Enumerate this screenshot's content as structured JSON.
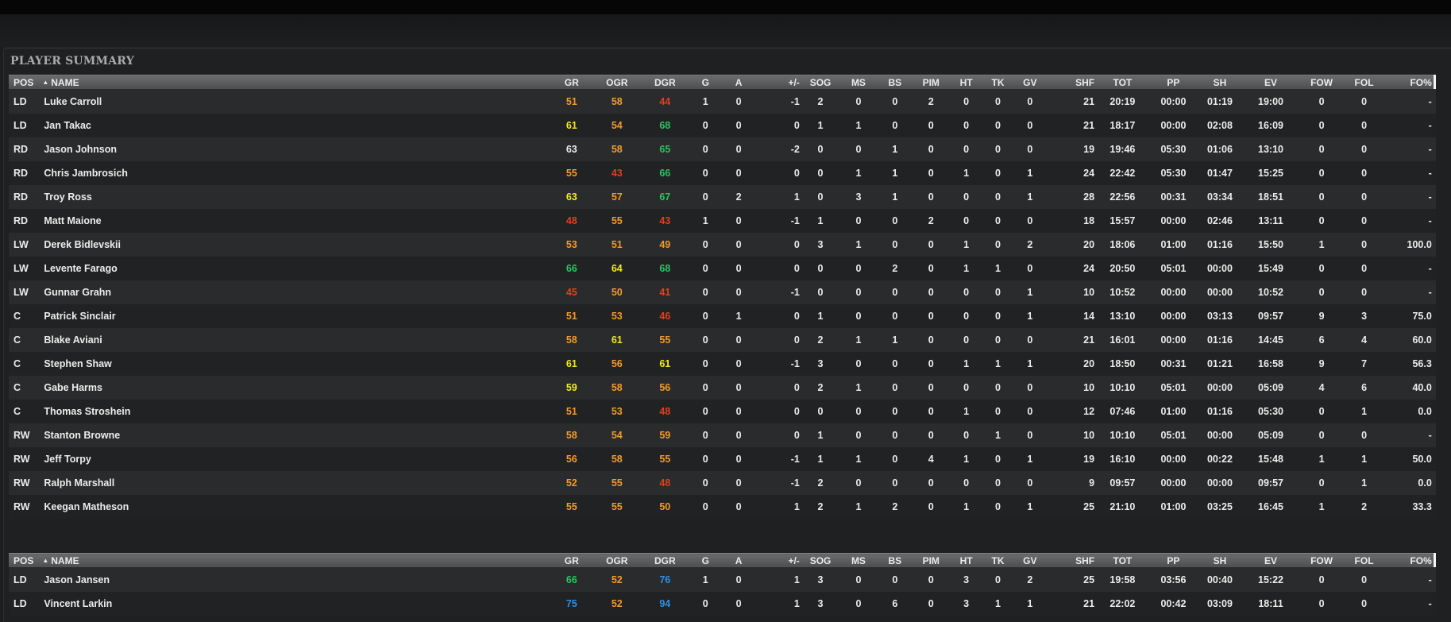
{
  "panel": {
    "title": "PLAYER SUMMARY"
  },
  "columns": [
    "POS",
    "NAME",
    "GR",
    "OGR",
    "DGR",
    "G",
    "A",
    "+/-",
    "SOG",
    "MS",
    "BS",
    "PIM",
    "HT",
    "TK",
    "GV",
    "SHF",
    "TOT",
    "PP",
    "SH",
    "EV",
    "FOW",
    "FOL",
    "FO%"
  ],
  "rating_colors": {
    "orange": "#f39a2b",
    "yellow": "#f2ea1c",
    "red": "#e0401c",
    "green": "#29c45f",
    "blue": "#2f8fe4"
  },
  "skaters": [
    {
      "pos": "LD",
      "name": "Luke Carroll",
      "gr": "51",
      "grc": "orange",
      "ogr": "58",
      "ogrc": "orange",
      "dgr": "44",
      "dgrc": "red",
      "g": "1",
      "a": "0",
      "pm": "-1",
      "sog": "2",
      "ms": "0",
      "bs": "0",
      "pim": "2",
      "ht": "0",
      "tk": "0",
      "gv": "0",
      "shf": "21",
      "tot": "20:19",
      "pp": "00:00",
      "sh": "01:19",
      "ev": "19:00",
      "fow": "0",
      "fol": "0",
      "fop": "-"
    },
    {
      "pos": "LD",
      "name": "Jan Takac",
      "gr": "61",
      "grc": "yellow",
      "ogr": "54",
      "ogrc": "orange",
      "dgr": "68",
      "dgrc": "green",
      "g": "0",
      "a": "0",
      "pm": "0",
      "sog": "1",
      "ms": "1",
      "bs": "0",
      "pim": "0",
      "ht": "0",
      "tk": "0",
      "gv": "0",
      "shf": "21",
      "tot": "18:17",
      "pp": "00:00",
      "sh": "02:08",
      "ev": "16:09",
      "fow": "0",
      "fol": "0",
      "fop": "-"
    },
    {
      "pos": "RD",
      "name": "Jason Johnson",
      "gr": "63",
      "grc": "white",
      "ogr": "58",
      "ogrc": "orange",
      "dgr": "65",
      "dgrc": "green",
      "g": "0",
      "a": "0",
      "pm": "-2",
      "sog": "0",
      "ms": "0",
      "bs": "1",
      "pim": "0",
      "ht": "0",
      "tk": "0",
      "gv": "0",
      "shf": "19",
      "tot": "19:46",
      "pp": "05:30",
      "sh": "01:06",
      "ev": "13:10",
      "fow": "0",
      "fol": "0",
      "fop": "-"
    },
    {
      "pos": "RD",
      "name": "Chris Jambrosich",
      "gr": "55",
      "grc": "orange",
      "ogr": "43",
      "ogrc": "red",
      "dgr": "66",
      "dgrc": "green",
      "g": "0",
      "a": "0",
      "pm": "0",
      "sog": "0",
      "ms": "1",
      "bs": "1",
      "pim": "0",
      "ht": "1",
      "tk": "0",
      "gv": "1",
      "shf": "24",
      "tot": "22:42",
      "pp": "05:30",
      "sh": "01:47",
      "ev": "15:25",
      "fow": "0",
      "fol": "0",
      "fop": "-"
    },
    {
      "pos": "RD",
      "name": "Troy Ross",
      "gr": "63",
      "grc": "yellow",
      "ogr": "57",
      "ogrc": "orange",
      "dgr": "67",
      "dgrc": "green",
      "g": "0",
      "a": "2",
      "pm": "1",
      "sog": "0",
      "ms": "3",
      "bs": "1",
      "pim": "0",
      "ht": "0",
      "tk": "0",
      "gv": "1",
      "shf": "28",
      "tot": "22:56",
      "pp": "00:31",
      "sh": "03:34",
      "ev": "18:51",
      "fow": "0",
      "fol": "0",
      "fop": "-"
    },
    {
      "pos": "RD",
      "name": "Matt Maione",
      "gr": "48",
      "grc": "red",
      "ogr": "55",
      "ogrc": "orange",
      "dgr": "43",
      "dgrc": "red",
      "g": "1",
      "a": "0",
      "pm": "-1",
      "sog": "1",
      "ms": "0",
      "bs": "0",
      "pim": "2",
      "ht": "0",
      "tk": "0",
      "gv": "0",
      "shf": "18",
      "tot": "15:57",
      "pp": "00:00",
      "sh": "02:46",
      "ev": "13:11",
      "fow": "0",
      "fol": "0",
      "fop": "-"
    },
    {
      "pos": "LW",
      "name": "Derek Bidlevskii",
      "gr": "53",
      "grc": "orange",
      "ogr": "51",
      "ogrc": "orange",
      "dgr": "49",
      "dgrc": "orange",
      "g": "0",
      "a": "0",
      "pm": "0",
      "sog": "3",
      "ms": "1",
      "bs": "0",
      "pim": "0",
      "ht": "1",
      "tk": "0",
      "gv": "2",
      "shf": "20",
      "tot": "18:06",
      "pp": "01:00",
      "sh": "01:16",
      "ev": "15:50",
      "fow": "1",
      "fol": "0",
      "fop": "100.0"
    },
    {
      "pos": "LW",
      "name": "Levente Farago",
      "gr": "66",
      "grc": "green",
      "ogr": "64",
      "ogrc": "yellow",
      "dgr": "68",
      "dgrc": "green",
      "g": "0",
      "a": "0",
      "pm": "0",
      "sog": "0",
      "ms": "0",
      "bs": "2",
      "pim": "0",
      "ht": "1",
      "tk": "1",
      "gv": "0",
      "shf": "24",
      "tot": "20:50",
      "pp": "05:01",
      "sh": "00:00",
      "ev": "15:49",
      "fow": "0",
      "fol": "0",
      "fop": "-"
    },
    {
      "pos": "LW",
      "name": "Gunnar Grahn",
      "gr": "45",
      "grc": "red",
      "ogr": "50",
      "ogrc": "orange",
      "dgr": "41",
      "dgrc": "red",
      "g": "0",
      "a": "0",
      "pm": "-1",
      "sog": "0",
      "ms": "0",
      "bs": "0",
      "pim": "0",
      "ht": "0",
      "tk": "0",
      "gv": "1",
      "shf": "10",
      "tot": "10:52",
      "pp": "00:00",
      "sh": "00:00",
      "ev": "10:52",
      "fow": "0",
      "fol": "0",
      "fop": "-"
    },
    {
      "pos": "C",
      "name": "Patrick Sinclair",
      "gr": "51",
      "grc": "orange",
      "ogr": "53",
      "ogrc": "orange",
      "dgr": "46",
      "dgrc": "red",
      "g": "0",
      "a": "1",
      "pm": "0",
      "sog": "1",
      "ms": "0",
      "bs": "0",
      "pim": "0",
      "ht": "0",
      "tk": "0",
      "gv": "1",
      "shf": "14",
      "tot": "13:10",
      "pp": "00:00",
      "sh": "03:13",
      "ev": "09:57",
      "fow": "9",
      "fol": "3",
      "fop": "75.0"
    },
    {
      "pos": "C",
      "name": "Blake Aviani",
      "gr": "58",
      "grc": "orange",
      "ogr": "61",
      "ogrc": "yellow",
      "dgr": "55",
      "dgrc": "orange",
      "g": "0",
      "a": "0",
      "pm": "0",
      "sog": "2",
      "ms": "1",
      "bs": "1",
      "pim": "0",
      "ht": "0",
      "tk": "0",
      "gv": "0",
      "shf": "21",
      "tot": "16:01",
      "pp": "00:00",
      "sh": "01:16",
      "ev": "14:45",
      "fow": "6",
      "fol": "4",
      "fop": "60.0"
    },
    {
      "pos": "C",
      "name": "Stephen Shaw",
      "gr": "61",
      "grc": "yellow",
      "ogr": "56",
      "ogrc": "orange",
      "dgr": "61",
      "dgrc": "yellow",
      "g": "0",
      "a": "0",
      "pm": "-1",
      "sog": "3",
      "ms": "0",
      "bs": "0",
      "pim": "0",
      "ht": "1",
      "tk": "1",
      "gv": "1",
      "shf": "20",
      "tot": "18:50",
      "pp": "00:31",
      "sh": "01:21",
      "ev": "16:58",
      "fow": "9",
      "fol": "7",
      "fop": "56.3"
    },
    {
      "pos": "C",
      "name": "Gabe Harms",
      "gr": "59",
      "grc": "yellow",
      "ogr": "58",
      "ogrc": "orange",
      "dgr": "56",
      "dgrc": "orange",
      "g": "0",
      "a": "0",
      "pm": "0",
      "sog": "2",
      "ms": "1",
      "bs": "0",
      "pim": "0",
      "ht": "0",
      "tk": "0",
      "gv": "0",
      "shf": "10",
      "tot": "10:10",
      "pp": "05:01",
      "sh": "00:00",
      "ev": "05:09",
      "fow": "4",
      "fol": "6",
      "fop": "40.0"
    },
    {
      "pos": "C",
      "name": "Thomas Stroshein",
      "gr": "51",
      "grc": "orange",
      "ogr": "53",
      "ogrc": "orange",
      "dgr": "48",
      "dgrc": "red",
      "g": "0",
      "a": "0",
      "pm": "0",
      "sog": "0",
      "ms": "0",
      "bs": "0",
      "pim": "0",
      "ht": "1",
      "tk": "0",
      "gv": "0",
      "shf": "12",
      "tot": "07:46",
      "pp": "01:00",
      "sh": "01:16",
      "ev": "05:30",
      "fow": "0",
      "fol": "1",
      "fop": "0.0"
    },
    {
      "pos": "RW",
      "name": "Stanton Browne",
      "gr": "58",
      "grc": "orange",
      "ogr": "54",
      "ogrc": "orange",
      "dgr": "59",
      "dgrc": "orange",
      "g": "0",
      "a": "0",
      "pm": "0",
      "sog": "1",
      "ms": "0",
      "bs": "0",
      "pim": "0",
      "ht": "0",
      "tk": "1",
      "gv": "0",
      "shf": "10",
      "tot": "10:10",
      "pp": "05:01",
      "sh": "00:00",
      "ev": "05:09",
      "fow": "0",
      "fol": "0",
      "fop": "-"
    },
    {
      "pos": "RW",
      "name": "Jeff Torpy",
      "gr": "56",
      "grc": "orange",
      "ogr": "58",
      "ogrc": "orange",
      "dgr": "55",
      "dgrc": "orange",
      "g": "0",
      "a": "0",
      "pm": "-1",
      "sog": "1",
      "ms": "1",
      "bs": "0",
      "pim": "4",
      "ht": "1",
      "tk": "0",
      "gv": "1",
      "shf": "19",
      "tot": "16:10",
      "pp": "00:00",
      "sh": "00:22",
      "ev": "15:48",
      "fow": "1",
      "fol": "1",
      "fop": "50.0"
    },
    {
      "pos": "RW",
      "name": "Ralph Marshall",
      "gr": "52",
      "grc": "orange",
      "ogr": "55",
      "ogrc": "orange",
      "dgr": "48",
      "dgrc": "red",
      "g": "0",
      "a": "0",
      "pm": "-1",
      "sog": "2",
      "ms": "0",
      "bs": "0",
      "pim": "0",
      "ht": "0",
      "tk": "0",
      "gv": "0",
      "shf": "9",
      "tot": "09:57",
      "pp": "00:00",
      "sh": "00:00",
      "ev": "09:57",
      "fow": "0",
      "fol": "1",
      "fop": "0.0"
    },
    {
      "pos": "RW",
      "name": "Keegan Matheson",
      "gr": "55",
      "grc": "orange",
      "ogr": "55",
      "ogrc": "orange",
      "dgr": "50",
      "dgrc": "orange",
      "g": "0",
      "a": "0",
      "pm": "1",
      "sog": "2",
      "ms": "1",
      "bs": "2",
      "pim": "0",
      "ht": "1",
      "tk": "0",
      "gv": "1",
      "shf": "25",
      "tot": "21:10",
      "pp": "01:00",
      "sh": "03:25",
      "ev": "16:45",
      "fow": "1",
      "fol": "2",
      "fop": "33.3"
    }
  ],
  "opponents": [
    {
      "pos": "LD",
      "name": "Jason Jansen",
      "gr": "66",
      "grc": "green",
      "ogr": "52",
      "ogrc": "orange",
      "dgr": "76",
      "dgrc": "blue",
      "g": "1",
      "a": "0",
      "pm": "1",
      "sog": "3",
      "ms": "0",
      "bs": "0",
      "pim": "0",
      "ht": "3",
      "tk": "0",
      "gv": "2",
      "shf": "25",
      "tot": "19:58",
      "pp": "03:56",
      "sh": "00:40",
      "ev": "15:22",
      "fow": "0",
      "fol": "0",
      "fop": "-"
    },
    {
      "pos": "LD",
      "name": "Vincent Larkin",
      "gr": "75",
      "grc": "blue",
      "ogr": "52",
      "ogrc": "orange",
      "dgr": "94",
      "dgrc": "blue",
      "g": "0",
      "a": "0",
      "pm": "1",
      "sog": "3",
      "ms": "0",
      "bs": "6",
      "pim": "0",
      "ht": "3",
      "tk": "1",
      "gv": "1",
      "shf": "21",
      "tot": "22:02",
      "pp": "00:42",
      "sh": "03:09",
      "ev": "18:11",
      "fow": "0",
      "fol": "0",
      "fop": "-"
    }
  ]
}
